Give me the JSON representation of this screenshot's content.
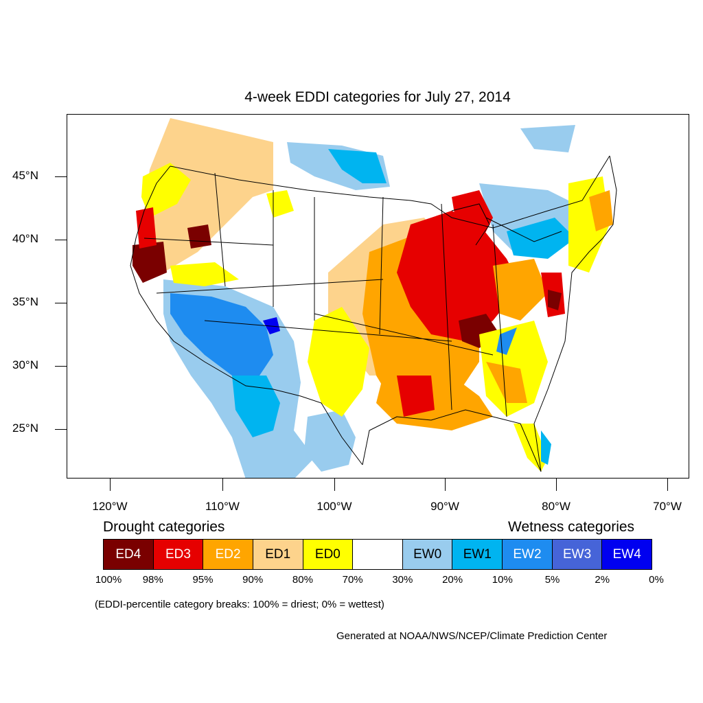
{
  "title": "4-week EDDI categories for July 27, 2014",
  "lat_labels": [
    "45°N",
    "40°N",
    "35°N",
    "30°N",
    "25°N"
  ],
  "lon_labels": [
    "120°W",
    "110°W",
    "100°W",
    "90°W",
    "80°W",
    "70°W"
  ],
  "legend": {
    "drought_heading": "Drought categories",
    "wetness_heading": "Wetness categories",
    "categories": [
      {
        "label": "ED4",
        "color": "#7a0000",
        "text_color": "#ffffff"
      },
      {
        "label": "ED3",
        "color": "#e60000",
        "text_color": "#ffffff"
      },
      {
        "label": "ED2",
        "color": "#ffa500",
        "text_color": "#ffffff"
      },
      {
        "label": "ED1",
        "color": "#fdd38c",
        "text_color": "#000000"
      },
      {
        "label": "ED0",
        "color": "#ffff00",
        "text_color": "#000000"
      },
      {
        "label": "",
        "color": "#ffffff",
        "text_color": "#000000"
      },
      {
        "label": "EW0",
        "color": "#99ccee",
        "text_color": "#000000"
      },
      {
        "label": "EW1",
        "color": "#00b4f0",
        "text_color": "#000000"
      },
      {
        "label": "EW2",
        "color": "#1e8cf0",
        "text_color": "#ffffff"
      },
      {
        "label": "EW3",
        "color": "#4664d8",
        "text_color": "#ffffff"
      },
      {
        "label": "EW4",
        "color": "#0000f0",
        "text_color": "#ffffff"
      }
    ],
    "breaks": [
      "100%",
      "98%",
      "95%",
      "90%",
      "80%",
      "70%",
      "30%",
      "20%",
      "10%",
      "5%",
      "2%",
      "0%"
    ]
  },
  "note": "(EDDI-percentile category breaks: 100% = driest; 0% = wettest)",
  "credit": "Generated at NOAA/NWS/NCEP/Climate Prediction Center"
}
